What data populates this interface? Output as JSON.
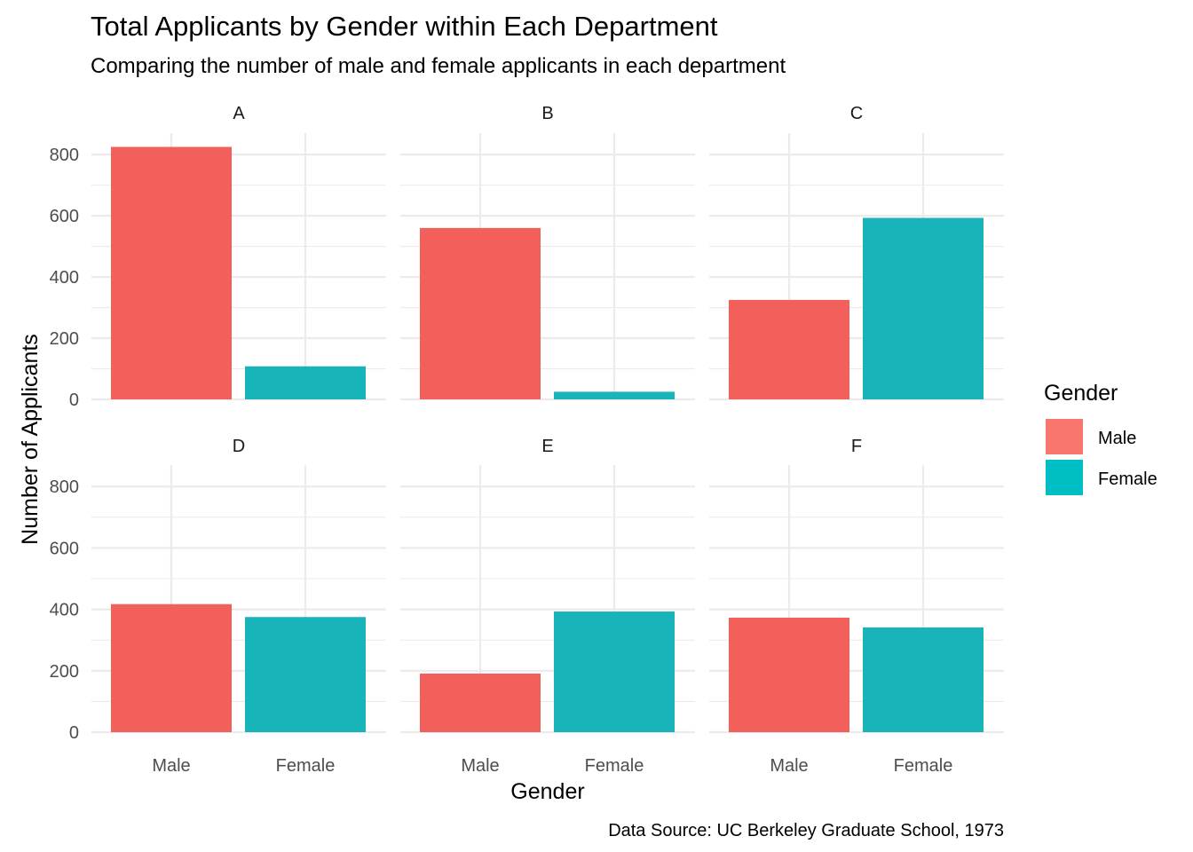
{
  "chart_data": {
    "type": "bar",
    "title": "Total Applicants by Gender within Each Department",
    "subtitle": "Comparing the number of male and female applicants in each department",
    "xlabel": "Gender",
    "ylabel": "Number of Applicants",
    "caption": "Data Source: UC Berkeley Graduate School, 1973",
    "categories": [
      "Male",
      "Female"
    ],
    "ylim": [
      0,
      870
    ],
    "yticks": [
      0,
      200,
      400,
      600,
      800
    ],
    "grid": true,
    "facet_columns": 3,
    "legend": {
      "title": "Gender",
      "placement": "right",
      "entries": [
        {
          "label": "Male",
          "color": "#F8766D"
        },
        {
          "label": "Female",
          "color": "#00BFC4"
        }
      ]
    },
    "series_colors": {
      "Male": "#F35F5B",
      "Female": "#19B4BA"
    },
    "facets": [
      {
        "label": "A",
        "values": [
          825,
          108
        ]
      },
      {
        "label": "B",
        "values": [
          560,
          25
        ]
      },
      {
        "label": "C",
        "values": [
          325,
          593
        ]
      },
      {
        "label": "D",
        "values": [
          417,
          375
        ]
      },
      {
        "label": "E",
        "values": [
          191,
          393
        ]
      },
      {
        "label": "F",
        "values": [
          373,
          341
        ]
      }
    ]
  }
}
